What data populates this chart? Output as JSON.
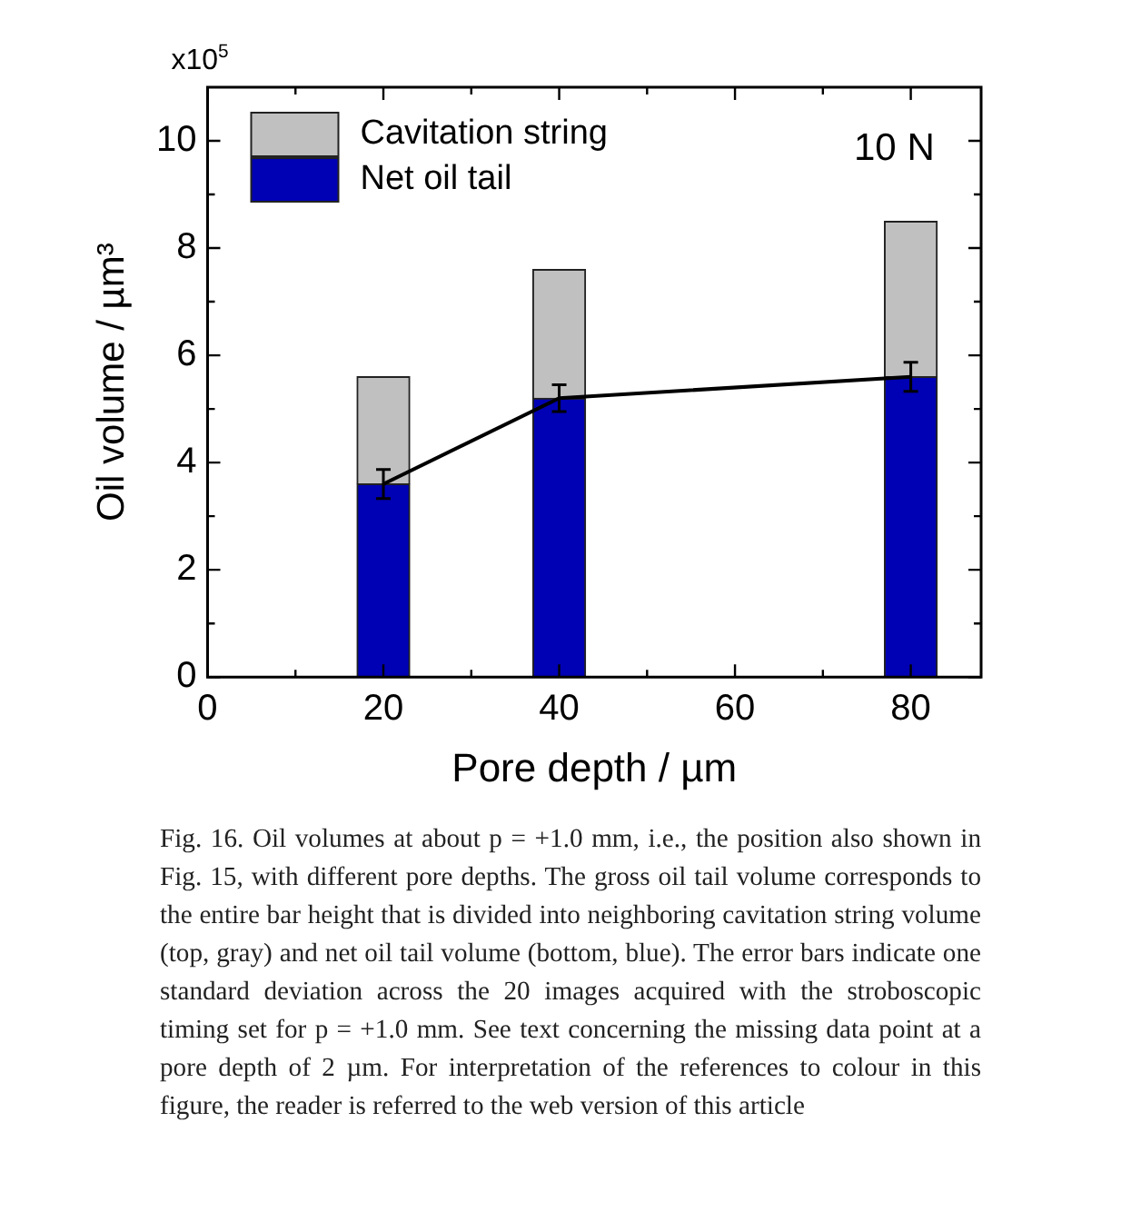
{
  "chart_data": {
    "type": "bar",
    "stacked": true,
    "xlabel": "Pore depth / µm",
    "ylabel": "Oil volume / µm³",
    "x": [
      20,
      40,
      80
    ],
    "series": [
      {
        "name": "Net oil tail",
        "color": "#0000b4",
        "values": [
          3.6,
          5.2,
          5.6
        ]
      },
      {
        "name": "Cavitation string",
        "color": "#c0c0c0",
        "values": [
          2.0,
          2.4,
          2.9
        ]
      },
      {
        "type": "line",
        "color": "#000000",
        "x": [
          20,
          40,
          80
        ],
        "values": [
          3.6,
          5.2,
          5.6
        ],
        "errors": [
          0.27,
          0.25,
          0.27
        ],
        "marker": "none",
        "line_style": "solid"
      }
    ],
    "xlim": [
      0,
      88
    ],
    "ylim": [
      0,
      11
    ],
    "xticks": [
      0,
      {
        "value": 10,
        "label": null
      },
      20,
      {
        "value": 30,
        "label": null
      },
      40,
      {
        "value": 50,
        "label": null
      },
      60,
      {
        "value": 70,
        "label": null
      },
      80
    ],
    "yticks": [
      0,
      {
        "value": 1,
        "label": null
      },
      2,
      {
        "value": 3,
        "label": null
      },
      4,
      {
        "value": 5,
        "label": null
      },
      6,
      {
        "value": 7,
        "label": null
      },
      8,
      {
        "value": 9,
        "label": null
      },
      10
    ],
    "legend": "top left",
    "grid": false,
    "annotations": [
      "x10$^{5}$",
      "10 N",
      "Fig. 16. Oil volumes at about p = +1.0 mm, i.e., the position also shown in Fig. 15, with different pore depths. The gross oil tail volume corresponds to the entire bar height that is divided into neighboring cavitation string volume (top, gray) and net oil tail volume (bottom, blue). The error bars indicate one standard deviation across the 20 images acquired with the stroboscopic timing set for p = +1.0 mm. See text concerning the missing data point at a pore depth of 2 µm. For interpretation of the references to colour in this figure, the reader is referred to the web version of this article"
    ]
  }
}
